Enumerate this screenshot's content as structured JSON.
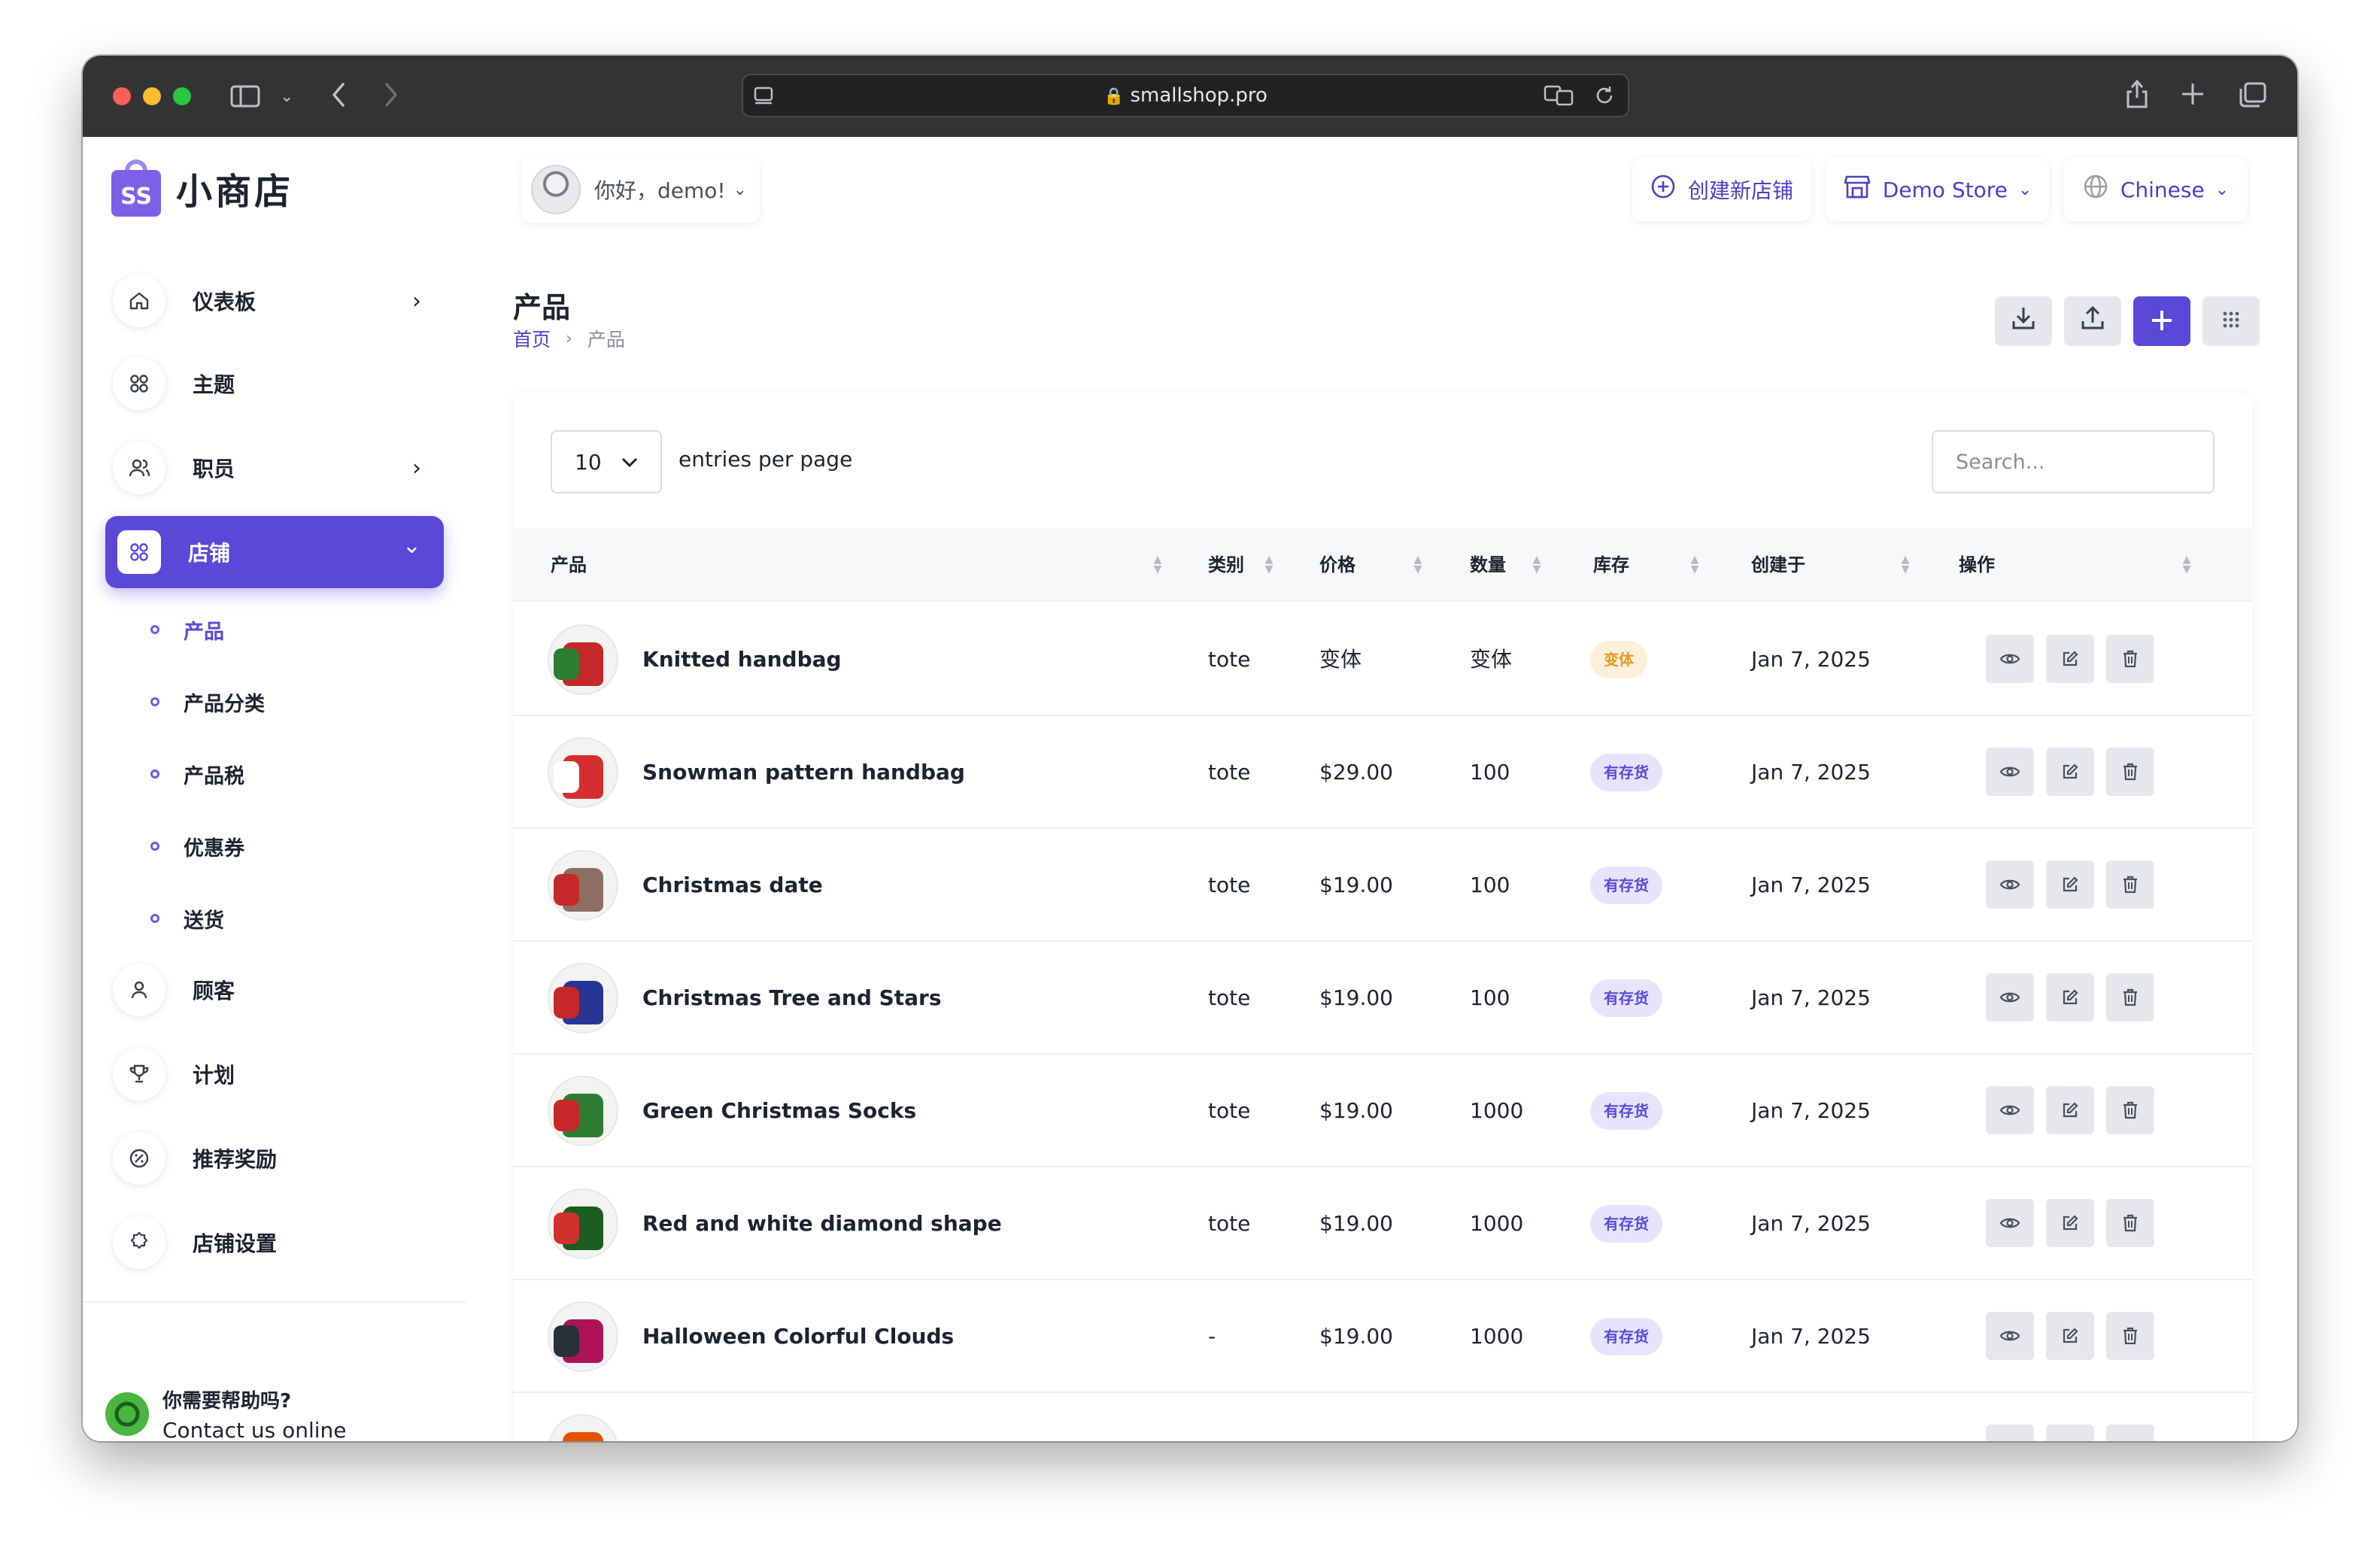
{
  "browser": {
    "url": "smallshop.pro",
    "icons": {
      "sidebar": "sidebar-toggle-icon",
      "back": "back-arrow-icon",
      "forward": "forward-arrow-icon",
      "share": "share-icon",
      "new_tab": "plus-icon",
      "tabs": "tabs-overview-icon",
      "translate": "translate-icon",
      "reload": "reload-icon"
    }
  },
  "brand": {
    "logo_mark": "SS",
    "name": "小商店"
  },
  "header": {
    "greeting": "你好，demo!",
    "create_store": "创建新店铺",
    "store_name": "Demo Store",
    "language": "Chinese"
  },
  "sidebar": {
    "items": [
      {
        "label": "仪表板",
        "icon": "home-icon",
        "arrow": "›"
      },
      {
        "label": "主题",
        "icon": "grid-icon",
        "arrow": ""
      },
      {
        "label": "职员",
        "icon": "users-icon",
        "arrow": "›"
      },
      {
        "label": "店铺",
        "icon": "grid-icon",
        "arrow": "⌄"
      },
      {
        "label": "顾客",
        "icon": "user-icon",
        "arrow": ""
      },
      {
        "label": "计划",
        "icon": "trophy-icon",
        "arrow": ""
      },
      {
        "label": "推荐奖励",
        "icon": "discount-icon",
        "arrow": ""
      },
      {
        "label": "店铺设置",
        "icon": "settings-icon",
        "arrow": ""
      }
    ],
    "store_sub_items": [
      "产品",
      "产品分类",
      "产品税",
      "优惠券",
      "送货"
    ],
    "help_title": "你需要帮助吗?",
    "help_subtitle": "Contact us online"
  },
  "page": {
    "title": "产品",
    "breadcrumb": {
      "home": "首页",
      "current": "产品"
    }
  },
  "toolbar": {
    "download_icon": "download-icon",
    "upload_icon": "upload-icon",
    "add_icon": "plus-icon",
    "grid_icon": "apps-icon"
  },
  "table": {
    "per_page_value": "10",
    "per_page_label": "entries per page",
    "search_placeholder": "Search...",
    "columns": [
      "产品",
      "类别",
      "价格",
      "数量",
      "库存",
      "创建于",
      "操作"
    ],
    "rows": [
      {
        "name": "Knitted handbag",
        "category": "tote",
        "price": "变体",
        "quantity": "变体",
        "stock": "变体",
        "stock_type": "variant",
        "created": "Jan 7, 2025"
      },
      {
        "name": "Snowman pattern handbag",
        "category": "tote",
        "price": "$29.00",
        "quantity": "100",
        "stock": "有存货",
        "stock_type": "instock",
        "created": "Jan 7, 2025"
      },
      {
        "name": "Christmas date",
        "category": "tote",
        "price": "$19.00",
        "quantity": "100",
        "stock": "有存货",
        "stock_type": "instock",
        "created": "Jan 7, 2025"
      },
      {
        "name": "Christmas Tree and Stars",
        "category": "tote",
        "price": "$19.00",
        "quantity": "100",
        "stock": "有存货",
        "stock_type": "instock",
        "created": "Jan 7, 2025"
      },
      {
        "name": "Green Christmas Socks",
        "category": "tote",
        "price": "$19.00",
        "quantity": "1000",
        "stock": "有存货",
        "stock_type": "instock",
        "created": "Jan 7, 2025"
      },
      {
        "name": "Red and white diamond shape",
        "category": "tote",
        "price": "$19.00",
        "quantity": "1000",
        "stock": "有存货",
        "stock_type": "instock",
        "created": "Jan 7, 2025"
      },
      {
        "name": "Halloween Colorful Clouds",
        "category": "-",
        "price": "$19.00",
        "quantity": "1000",
        "stock": "有存货",
        "stock_type": "instock",
        "created": "Jan 7, 2025"
      }
    ]
  },
  "colors": {
    "accent": "#5b48d8",
    "variant_badge_bg": "#fdefd9",
    "variant_badge_text": "#e49a1e",
    "instock_badge_bg": "#e6e4fb"
  }
}
